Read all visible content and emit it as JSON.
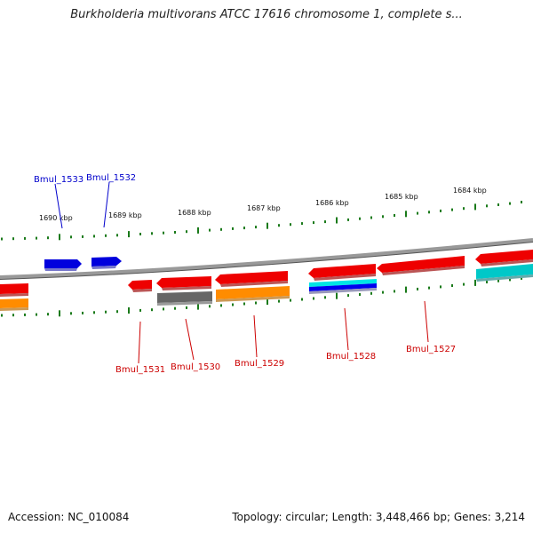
{
  "title": "Burkholderia multivorans ATCC 17616 chromosome 1, complete s...",
  "footer": {
    "accession": "Accession: NC_010084",
    "summary": "Topology: circular; Length: 3,448,466 bp; Genes: 3,214"
  },
  "scale": {
    "ticks": [
      "1690 kbp",
      "1689 kbp",
      "1688 kbp",
      "1687 kbp",
      "1686 kbp",
      "1685 kbp",
      "1684 kbp"
    ]
  },
  "genes": {
    "forward": [
      "Bmul_1533",
      "Bmul_1532"
    ],
    "reverse": [
      "Bmul_1531",
      "Bmul_1530",
      "Bmul_1529",
      "Bmul_1528",
      "Bmul_1527"
    ]
  },
  "colors": {
    "forward_gene": "#0000cc",
    "reverse_gene": "#cc0000",
    "cds": "#ee0000",
    "ruler_ticks": "#1a7a1a",
    "backbone": "#888888",
    "function_gray": "#666666",
    "function_orange": "#ff8c00",
    "function_cyan": "#00cccc",
    "function_blue": "#0000ee"
  }
}
